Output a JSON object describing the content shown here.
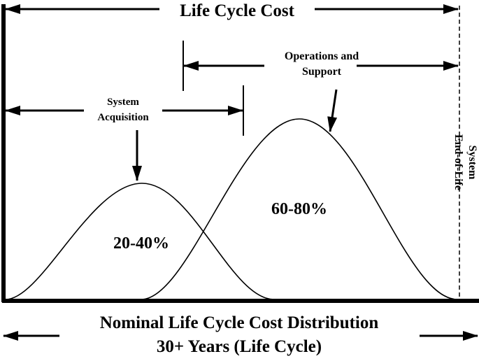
{
  "diagram": {
    "title": "Life Cycle Cost",
    "operations_label": [
      "Operations and",
      "Support"
    ],
    "acquisition_label": [
      "System",
      "Acquisition"
    ],
    "end_of_life_label": [
      "System",
      "End-of-Life"
    ],
    "acquisition_share": "20-40%",
    "operations_share": "60-80%",
    "footer_line1": "Nominal Life Cycle Cost Distribution",
    "footer_line2": "30+ Years (Life Cycle)"
  }
}
